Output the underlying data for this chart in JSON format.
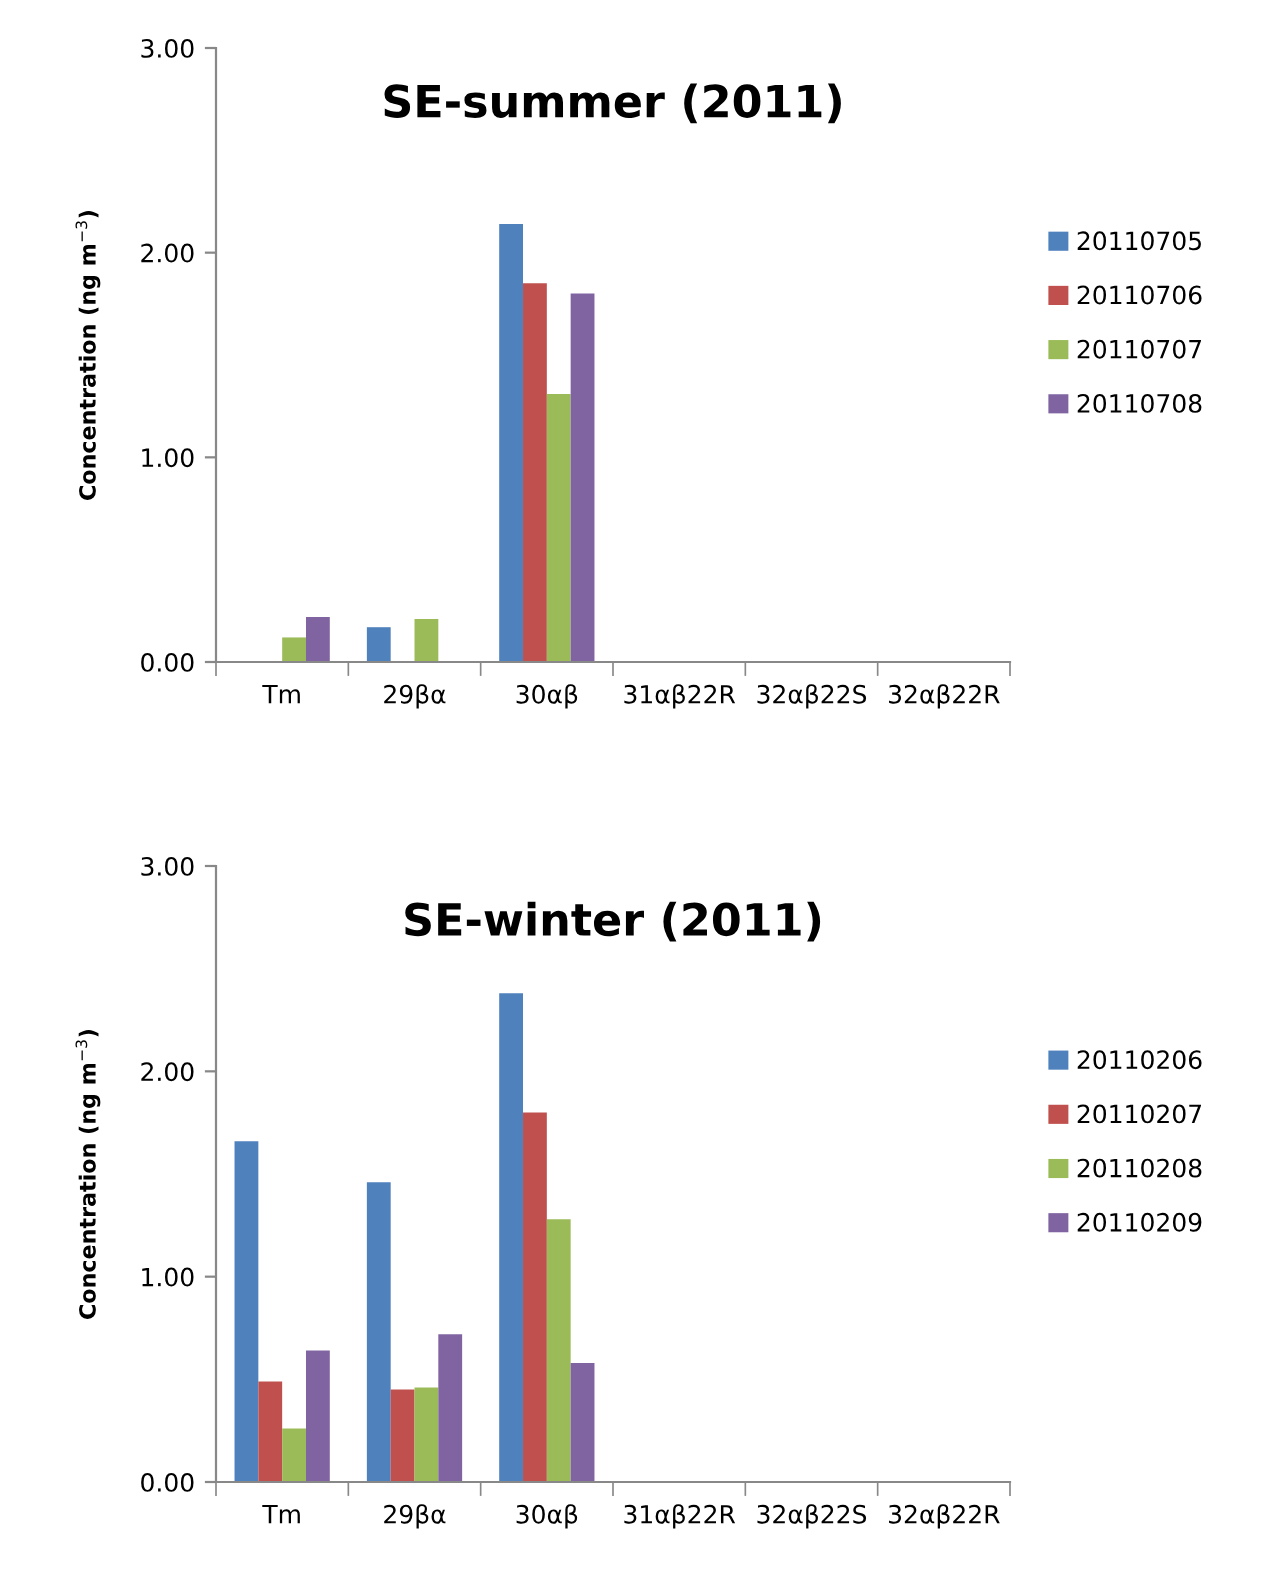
{
  "chart_data": [
    {
      "type": "bar",
      "title": "SE-summer (2011)",
      "ylabel": "Concentration (ng m$^{−3}$)",
      "categories": [
        "Tm",
        "29βα",
        "30αβ",
        "31αβ22R",
        "32αβ22S",
        "32αβ22R"
      ],
      "series": [
        {
          "name": "20110705",
          "color": "#4f81bd",
          "values": [
            null,
            0.17,
            2.14,
            null,
            null,
            null
          ]
        },
        {
          "name": "20110706",
          "color": "#c0504d",
          "values": [
            null,
            null,
            1.85,
            null,
            null,
            null
          ]
        },
        {
          "name": "20110707",
          "color": "#9bbb59",
          "values": [
            0.12,
            0.21,
            1.31,
            null,
            null,
            null
          ]
        },
        {
          "name": "20110708",
          "color": "#8064a2",
          "values": [
            0.22,
            null,
            1.8,
            null,
            null,
            null
          ]
        }
      ],
      "ylim": [
        0,
        3
      ],
      "yticks": [
        {
          "value": 0,
          "label": "0.00"
        },
        {
          "value": 1,
          "label": "1.00"
        },
        {
          "value": 2,
          "label": "2.00"
        },
        {
          "value": 3,
          "label": "3.00"
        }
      ],
      "legend": "right"
    },
    {
      "type": "bar",
      "title": "SE-winter (2011)",
      "ylabel": "Concentration (ng m$^{−3}$)",
      "categories": [
        "Tm",
        "29βα",
        "30αβ",
        "31αβ22R",
        "32αβ22S",
        "32αβ22R"
      ],
      "series": [
        {
          "name": "20110206",
          "color": "#4f81bd",
          "values": [
            1.66,
            1.46,
            2.38,
            null,
            null,
            null
          ]
        },
        {
          "name": "20110207",
          "color": "#c0504d",
          "values": [
            0.49,
            0.45,
            1.8,
            null,
            null,
            null
          ]
        },
        {
          "name": "20110208",
          "color": "#9bbb59",
          "values": [
            0.26,
            0.46,
            1.28,
            null,
            null,
            null
          ]
        },
        {
          "name": "20110209",
          "color": "#8064a2",
          "values": [
            0.64,
            0.72,
            0.58,
            null,
            null,
            null
          ]
        }
      ],
      "ylim": [
        0,
        3
      ],
      "yticks": [
        {
          "value": 0,
          "label": "0.00"
        },
        {
          "value": 1,
          "label": "1.00"
        },
        {
          "value": 2,
          "label": "2.00"
        },
        {
          "value": 3,
          "label": "3.00"
        }
      ],
      "legend": "right"
    }
  ]
}
